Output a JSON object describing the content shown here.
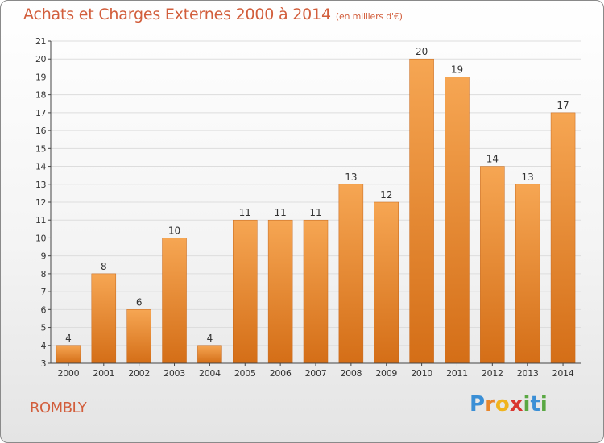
{
  "header": {
    "title": "Achats et Charges Externes 2000 à 2014",
    "subtitle": "(en milliers d'€)"
  },
  "footer": {
    "town": "ROMBLY",
    "logo_letters": [
      "P",
      "r",
      "o",
      "x",
      "i",
      "t",
      "i"
    ],
    "logo_colors": [
      "#3a8fd6",
      "#e8862c",
      "#f0b41e",
      "#d9362f",
      "#5aa843",
      "#3a8fd6",
      "#5aa843"
    ]
  },
  "colors": {
    "bar_top": "#f6a653",
    "bar_bottom": "#d46e17",
    "axis": "#444444",
    "grid": "#dddddd"
  },
  "chart_data": {
    "type": "bar",
    "categories": [
      "2000",
      "2001",
      "2002",
      "2003",
      "2004",
      "2005",
      "2006",
      "2007",
      "2008",
      "2009",
      "2010",
      "2011",
      "2012",
      "2013",
      "2014"
    ],
    "values": [
      4,
      8,
      6,
      10,
      4,
      11,
      11,
      11,
      13,
      12,
      20,
      19,
      14,
      13,
      17
    ],
    "data_labels": [
      "4",
      "8",
      "6",
      "10",
      "4",
      "11",
      "11",
      "11",
      "13",
      "12",
      "20",
      "19",
      "14",
      "13",
      "17"
    ],
    "ylim": [
      3,
      21
    ],
    "yticks": [
      "3",
      "4",
      "5",
      "6",
      "7",
      "8",
      "9",
      "10",
      "11",
      "12",
      "13",
      "14",
      "15",
      "16",
      "17",
      "18",
      "19",
      "20",
      "21"
    ],
    "grid": "horizontal",
    "xlabel": "",
    "ylabel": ""
  }
}
